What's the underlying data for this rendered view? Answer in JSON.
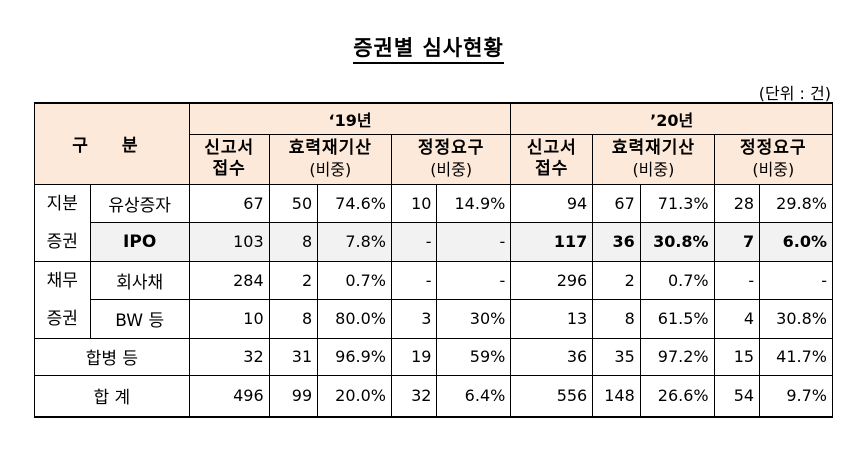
{
  "title": "증권별 심사현황",
  "unit": "(단위 : 건)",
  "header": {
    "category": "구 분",
    "year1": "‘19년",
    "year2": "’20년",
    "col_filed_1": "신고서",
    "col_filed_2": "접수",
    "col_effective_1": "효력재기산",
    "col_effective_2": "(비중)",
    "col_correction_1": "정정요구",
    "col_correction_2": "(비중)"
  },
  "groups": {
    "equity_1": "지분",
    "equity_2": "증권",
    "debt_1": "채무",
    "debt_2": "증권"
  },
  "rows": [
    {
      "label": "유상증자",
      "y19": [
        "67",
        "50",
        "74.6%",
        "10",
        "14.9%"
      ],
      "y20": [
        "94",
        "67",
        "71.3%",
        "28",
        "29.8%"
      ]
    },
    {
      "label": "IPO",
      "y19": [
        "103",
        "8",
        "7.8%",
        "-",
        "-"
      ],
      "y20": [
        "117",
        "36",
        "30.8%",
        "7",
        "6.0%"
      ]
    },
    {
      "label": "회사채",
      "y19": [
        "284",
        "2",
        "0.7%",
        "-",
        "-"
      ],
      "y20": [
        "296",
        "2",
        "0.7%",
        "-",
        "-"
      ]
    },
    {
      "label": "BW 등",
      "y19": [
        "10",
        "8",
        "80.0%",
        "3",
        "30%"
      ],
      "y20": [
        "13",
        "8",
        "61.5%",
        "4",
        "30.8%"
      ]
    },
    {
      "label": "합병 등",
      "y19": [
        "32",
        "31",
        "96.9%",
        "19",
        "59%"
      ],
      "y20": [
        "36",
        "35",
        "97.2%",
        "15",
        "41.7%"
      ]
    },
    {
      "label": "합 계",
      "y19": [
        "496",
        "99",
        "20.0%",
        "32",
        "6.4%"
      ],
      "y20": [
        "556",
        "148",
        "26.6%",
        "54",
        "9.7%"
      ]
    }
  ],
  "colors": {
    "header_bg": "#fde9d9",
    "ipo_row_bg": "#f2f2f2"
  }
}
